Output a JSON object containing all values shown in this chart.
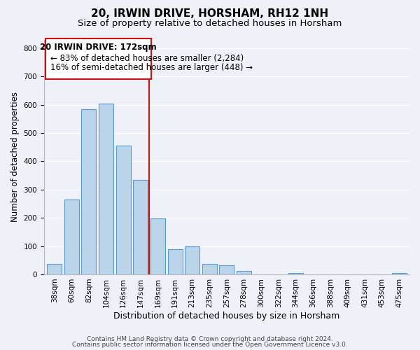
{
  "title": "20, IRWIN DRIVE, HORSHAM, RH12 1NH",
  "subtitle": "Size of property relative to detached houses in Horsham",
  "xlabel": "Distribution of detached houses by size in Horsham",
  "ylabel": "Number of detached properties",
  "bar_color": "#bad4ea",
  "bar_edge_color": "#5b9bd5",
  "background_color": "#eef2f8",
  "plot_bg_color": "#eef2f8",
  "categories": [
    "38sqm",
    "60sqm",
    "82sqm",
    "104sqm",
    "126sqm",
    "147sqm",
    "169sqm",
    "191sqm",
    "213sqm",
    "235sqm",
    "257sqm",
    "278sqm",
    "300sqm",
    "322sqm",
    "344sqm",
    "366sqm",
    "388sqm",
    "409sqm",
    "431sqm",
    "453sqm",
    "475sqm"
  ],
  "values": [
    38,
    265,
    585,
    605,
    455,
    335,
    197,
    90,
    100,
    37,
    32,
    12,
    0,
    0,
    5,
    0,
    0,
    0,
    0,
    0,
    5
  ],
  "ylim": [
    0,
    830
  ],
  "yticks": [
    0,
    100,
    200,
    300,
    400,
    500,
    600,
    700,
    800
  ],
  "annotation_box_title": "20 IRWIN DRIVE: 172sqm",
  "annotation_line1": "← 83% of detached houses are smaller (2,284)",
  "annotation_line2": "16% of semi-detached houses are larger (448) →",
  "vline_x_index": 6,
  "footer1": "Contains HM Land Registry data © Crown copyright and database right 2024.",
  "footer2": "Contains public sector information licensed under the Open Government Licence v3.0.",
  "title_fontsize": 11,
  "subtitle_fontsize": 9.5,
  "xlabel_fontsize": 9,
  "ylabel_fontsize": 8.5,
  "tick_fontsize": 7.5,
  "annotation_fontsize": 8.5,
  "footer_fontsize": 6.5,
  "vline_color": "#cc1111",
  "box_edge_color": "#cc1111"
}
